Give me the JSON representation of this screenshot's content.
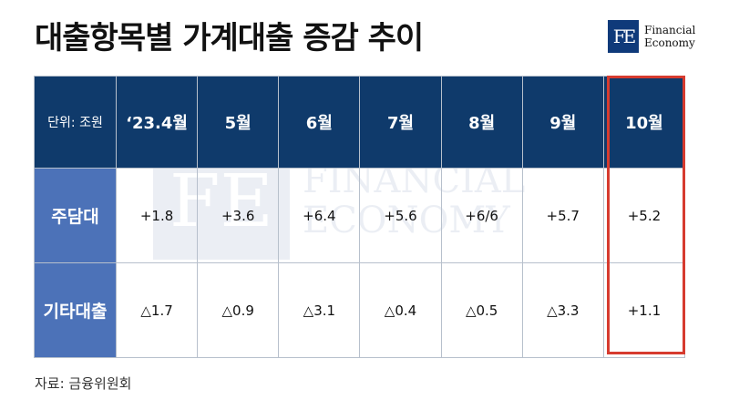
{
  "title": "대출항목별 가계대출 증감 추이",
  "logo": {
    "mark": "FE",
    "line1": "Financial",
    "line2": "Economy"
  },
  "watermark": {
    "mark": "FE",
    "line1": "FINANCIAL",
    "line2": "ECONOMY"
  },
  "table": {
    "unit_label": "단위: 조원",
    "columns": [
      "‘23.4월",
      "5월",
      "6월",
      "7월",
      "8월",
      "9월",
      "10월"
    ],
    "rows": [
      {
        "label": "주담대",
        "values": [
          "+1.8",
          "+3.6",
          "+6.4",
          "+5.6",
          "+6/6",
          "+5.7",
          "+5.2"
        ]
      },
      {
        "label": "기타대출",
        "values": [
          "△1.7",
          "△0.9",
          "△3.1",
          "△0.4",
          "△0.5",
          "△3.3",
          "+1.1"
        ]
      }
    ],
    "highlight_column": "10월",
    "colors": {
      "header_bg": "#0f3a6b",
      "row_label_bg": "#4c72b8",
      "highlight": "#d63b2f"
    }
  },
  "source": "자료: 금융위원회"
}
